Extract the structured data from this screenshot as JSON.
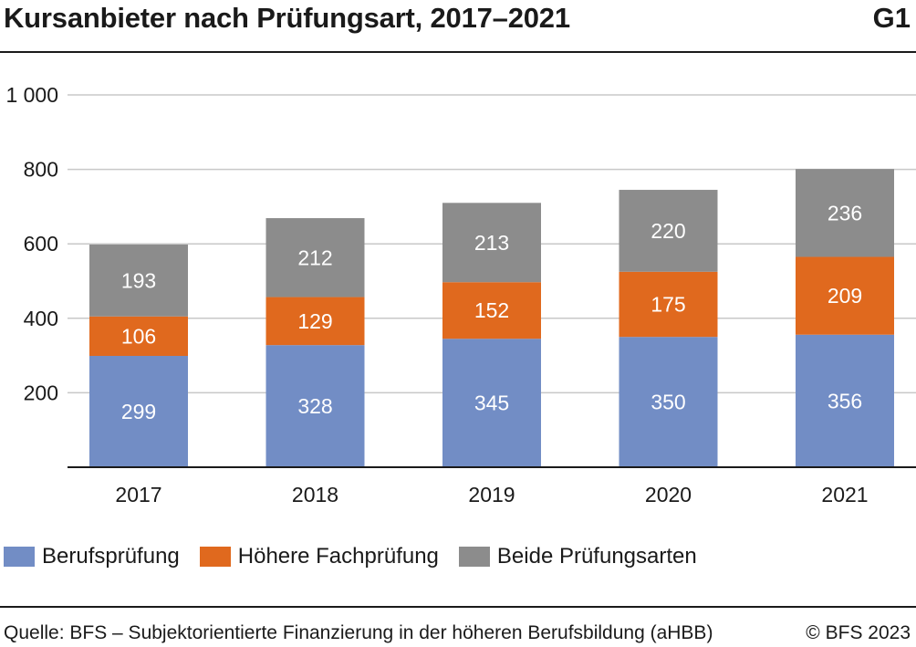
{
  "header": {
    "title": "Kursanbieter nach Prüfungsart, 2017–2021",
    "chart_id": "G1"
  },
  "footer": {
    "source": "Quelle: BFS – Subjektorientierte Finanzierung in der höheren Berufsbildung (aHBB)",
    "copyright": "© BFS 2023"
  },
  "chart_data": {
    "type": "bar",
    "stacked": true,
    "categories": [
      "2017",
      "2018",
      "2019",
      "2020",
      "2021"
    ],
    "series": [
      {
        "name": "Berufsprüfung",
        "color": "#728dc5",
        "values": [
          299,
          328,
          345,
          350,
          356
        ]
      },
      {
        "name": "Höhere Fachprüfung",
        "color": "#e0691e",
        "values": [
          106,
          129,
          152,
          175,
          209
        ]
      },
      {
        "name": "Beide Prüfungsarten",
        "color": "#8c8c8c",
        "values": [
          193,
          212,
          213,
          220,
          236
        ]
      }
    ],
    "ylim": [
      0,
      1000
    ],
    "yticks": [
      200,
      400,
      600,
      800,
      1000
    ],
    "ytick_labels": [
      "200",
      "400",
      "600",
      "800",
      "1 000"
    ],
    "grid": true,
    "legend_position": "bottom",
    "data_labels": true
  }
}
